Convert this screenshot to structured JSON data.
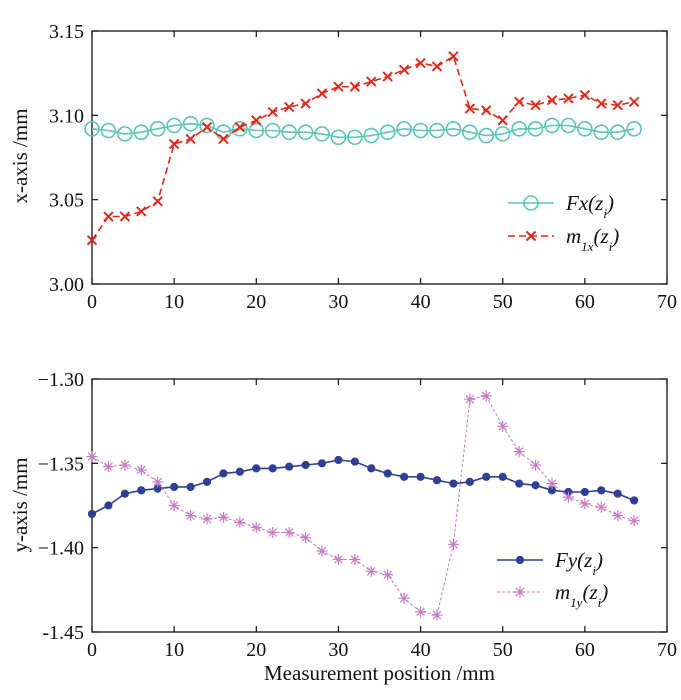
{
  "chart_data": [
    {
      "type": "line",
      "title": "",
      "xlabel": "",
      "ylabel": "x-axis /mm",
      "xlim": [
        0,
        70
      ],
      "ylim": [
        3.0,
        3.15
      ],
      "xticks": [
        0,
        10,
        20,
        30,
        40,
        50,
        60,
        70
      ],
      "yticks": [
        3.0,
        3.05,
        3.1,
        3.15
      ],
      "ytick_labels": [
        "3.00",
        "3.05",
        "3.10",
        "3.15"
      ],
      "legend_position": "lower-right",
      "x": [
        0,
        2,
        4,
        6,
        8,
        10,
        12,
        14,
        16,
        18,
        20,
        22,
        24,
        26,
        28,
        30,
        32,
        34,
        36,
        38,
        40,
        42,
        44,
        46,
        48,
        50,
        52,
        54,
        56,
        58,
        60,
        62,
        64,
        66
      ],
      "series": [
        {
          "name": "Fx(z_i)",
          "label_main": "Fx(z",
          "label_sub": "i",
          "label_close": ")",
          "color": "#5cc4b8",
          "marker": "circle",
          "line": "solid",
          "values": [
            3.092,
            3.091,
            3.089,
            3.09,
            3.092,
            3.094,
            3.095,
            3.094,
            3.09,
            3.092,
            3.091,
            3.091,
            3.09,
            3.09,
            3.089,
            3.087,
            3.087,
            3.088,
            3.09,
            3.092,
            3.091,
            3.091,
            3.092,
            3.09,
            3.088,
            3.089,
            3.092,
            3.092,
            3.094,
            3.094,
            3.092,
            3.09,
            3.09,
            3.092
          ]
        },
        {
          "name": "m_1x(z_i)",
          "label_main": "m",
          "label_sub1": "1x",
          "label_mid": "(z",
          "label_sub": "i",
          "label_close": ")",
          "color": "#e02a1f",
          "marker": "x",
          "line": "dashed",
          "values": [
            3.026,
            3.04,
            3.04,
            3.043,
            3.049,
            3.083,
            3.086,
            3.093,
            3.086,
            3.093,
            3.097,
            3.102,
            3.105,
            3.107,
            3.113,
            3.117,
            3.117,
            3.12,
            3.123,
            3.127,
            3.131,
            3.129,
            3.135,
            3.104,
            3.103,
            3.097,
            3.108,
            3.106,
            3.109,
            3.11,
            3.112,
            3.107,
            3.106,
            3.108
          ]
        }
      ]
    },
    {
      "type": "line",
      "title": "",
      "xlabel": "Measurement position /mm",
      "ylabel": "y-axis /mm",
      "xlim": [
        0,
        70
      ],
      "ylim": [
        -1.45,
        -1.3
      ],
      "xticks": [
        0,
        10,
        20,
        30,
        40,
        50,
        60,
        70
      ],
      "yticks": [
        -1.45,
        -1.4,
        -1.35,
        -1.3
      ],
      "ytick_labels": [
        "-1.45",
        "−1.40",
        "−1.35",
        "−1.30"
      ],
      "legend_position": "lower-right",
      "x": [
        0,
        2,
        4,
        6,
        8,
        10,
        12,
        14,
        16,
        18,
        20,
        22,
        24,
        26,
        28,
        30,
        32,
        34,
        36,
        38,
        40,
        42,
        44,
        46,
        48,
        50,
        52,
        54,
        56,
        58,
        60,
        62,
        64,
        66
      ],
      "series": [
        {
          "name": "Fy(z_i)",
          "label_main": "Fy(z",
          "label_sub": "i",
          "label_close": ")",
          "color": "#2e3f94",
          "marker": "dot",
          "line": "solid",
          "values": [
            -1.38,
            -1.375,
            -1.368,
            -1.366,
            -1.365,
            -1.364,
            -1.364,
            -1.361,
            -1.356,
            -1.355,
            -1.353,
            -1.353,
            -1.352,
            -1.351,
            -1.35,
            -1.348,
            -1.349,
            -1.353,
            -1.356,
            -1.358,
            -1.358,
            -1.36,
            -1.362,
            -1.361,
            -1.358,
            -1.358,
            -1.362,
            -1.363,
            -1.366,
            -1.367,
            -1.367,
            -1.366,
            -1.368,
            -1.372
          ]
        },
        {
          "name": "m_1y(z_i)",
          "label_main": "m",
          "label_sub1": "1y",
          "label_mid": "(z",
          "label_sub": "i",
          "label_close": ")",
          "color": "#c77bc4",
          "marker": "asterisk",
          "line": "dotted",
          "values": [
            -1.346,
            -1.352,
            -1.351,
            -1.354,
            -1.361,
            -1.375,
            -1.381,
            -1.383,
            -1.382,
            -1.385,
            -1.388,
            -1.391,
            -1.391,
            -1.394,
            -1.402,
            -1.407,
            -1.407,
            -1.414,
            -1.416,
            -1.43,
            -1.438,
            -1.44,
            -1.398,
            -1.312,
            -1.31,
            -1.328,
            -1.343,
            -1.351,
            -1.362,
            -1.37,
            -1.374,
            -1.376,
            -1.381,
            -1.384
          ]
        }
      ]
    }
  ]
}
